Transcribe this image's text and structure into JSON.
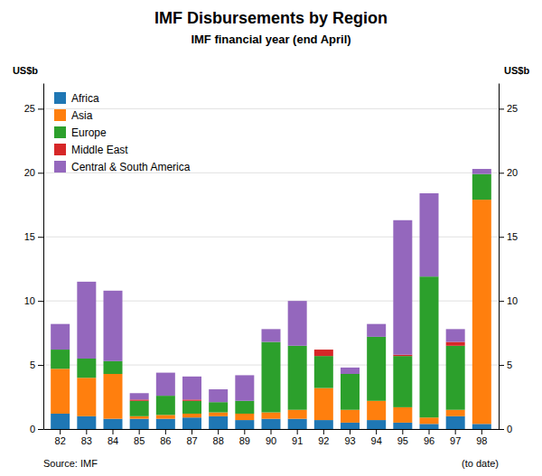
{
  "chart_data": {
    "type": "bar",
    "stacked": true,
    "title": "IMF Disbursements by Region",
    "subtitle": "IMF financial year (end April)",
    "ylabel": "US$b",
    "y2label": "US$b",
    "annotations": [
      "Source: IMF",
      "(to date)"
    ],
    "categories": [
      "82",
      "83",
      "84",
      "85",
      "86",
      "87",
      "88",
      "89",
      "90",
      "91",
      "92",
      "93",
      "94",
      "95",
      "96",
      "97",
      "98"
    ],
    "series": [
      {
        "name": "Africa",
        "values": [
          1.2,
          1.0,
          0.8,
          0.8,
          0.8,
          0.9,
          1.0,
          0.7,
          0.8,
          0.8,
          0.7,
          0.5,
          0.7,
          0.5,
          0.4,
          1.0,
          0.4
        ]
      },
      {
        "name": "Asia",
        "values": [
          3.5,
          3.0,
          3.5,
          0.2,
          0.3,
          0.3,
          0.3,
          0.5,
          0.5,
          0.7,
          2.5,
          1.0,
          1.5,
          1.2,
          0.5,
          0.5,
          17.5
        ]
      },
      {
        "name": "Europe",
        "values": [
          1.5,
          1.5,
          1.0,
          1.2,
          1.5,
          1.0,
          0.8,
          1.0,
          5.5,
          5.0,
          2.5,
          2.8,
          5.0,
          4.0,
          11.0,
          5.0,
          2.0
        ]
      },
      {
        "name": "Middle East",
        "values": [
          0.0,
          0.0,
          0.0,
          0.1,
          0.0,
          0.1,
          0.0,
          0.0,
          0.0,
          0.0,
          0.5,
          0.0,
          0.0,
          0.1,
          0.0,
          0.3,
          0.0
        ]
      },
      {
        "name": "Central & South America",
        "values": [
          2.0,
          6.0,
          5.5,
          0.5,
          1.8,
          1.8,
          1.0,
          2.0,
          1.0,
          3.5,
          0.0,
          0.5,
          1.0,
          10.5,
          6.5,
          1.0,
          0.4
        ]
      }
    ],
    "ylim": [
      0,
      27
    ],
    "yticks": [
      0,
      5,
      10,
      15,
      20,
      25
    ],
    "y2lim": [
      0,
      27
    ],
    "y2ticks": [
      0,
      5,
      10,
      15,
      20,
      25
    ],
    "grid": true,
    "legend": "upper left"
  }
}
